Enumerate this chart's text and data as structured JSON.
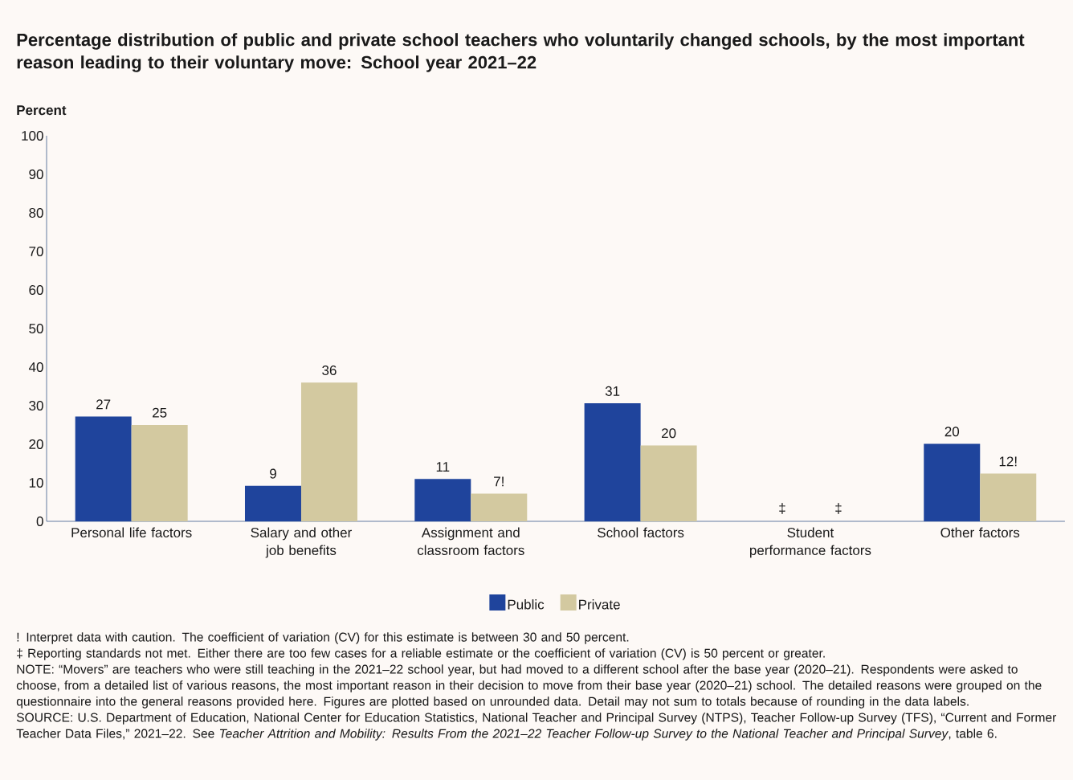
{
  "chart_data": {
    "type": "bar",
    "title": "Percentage distribution of public and private school teachers who voluntarily changed schools, by the most important reason leading to their voluntary move: School year 2021–22",
    "ylabel": "Percent",
    "categories": [
      "Personal life factors",
      "Salary and other job benefits",
      "Assignment and classroom factors",
      "School factors",
      "Student performance factors",
      "Other factors"
    ],
    "series": [
      {
        "name": "Public",
        "color": "#1f449c",
        "values": [
          27.2,
          9.2,
          11.0,
          30.6,
          null,
          20.1
        ],
        "value_labels": [
          "27",
          "9",
          "11",
          "31",
          "‡",
          "20"
        ]
      },
      {
        "name": "Private",
        "color": "#d3c9a0",
        "values": [
          25.0,
          36.0,
          7.2,
          19.7,
          null,
          12.4
        ],
        "value_labels": [
          "25",
          "36",
          "7!",
          "20",
          "‡",
          "12!"
        ]
      }
    ],
    "ylim": [
      0,
      100
    ],
    "yticks": [
      0,
      10,
      20,
      30,
      40,
      50,
      60,
      70,
      80,
      90,
      100
    ],
    "legend": "bottom",
    "annotations": [
      "! Interpret data with caution. The coefficient of variation (CV) for this estimate is between 30 and 50 percent.",
      "‡ Reporting standards not met. Either there are too few cases for a reliable estimate or the coefficient of variation (CV) is 50 percent or greater.",
      "NOTE: “Movers” are teachers who were still teaching in the 2021–22 school year, but had moved to a different school after the base year (2020–21). Respondents were asked to choose, from a detailed list of various reasons, the most important reason in their decision to move from their base year (2020–21) school. The detailed reasons were grouped on the questionnaire into the general reasons provided here. Figures are plotted based on unrounded data. Detail may not sum to totals because of rounding in the data labels.",
      "SOURCE: U.S. Department of Education, National Center for Education Statistics, National Teacher and Principal Survey (NTPS), Teacher Follow-up Survey (TFS), “Current and Former Teacher Data Files,” 2021–22. See *Teacher Attrition and Mobility: Results From the 2021–22 Teacher Follow-up Survey to the National Teacher and Principal Survey*, table 6."
    ]
  }
}
